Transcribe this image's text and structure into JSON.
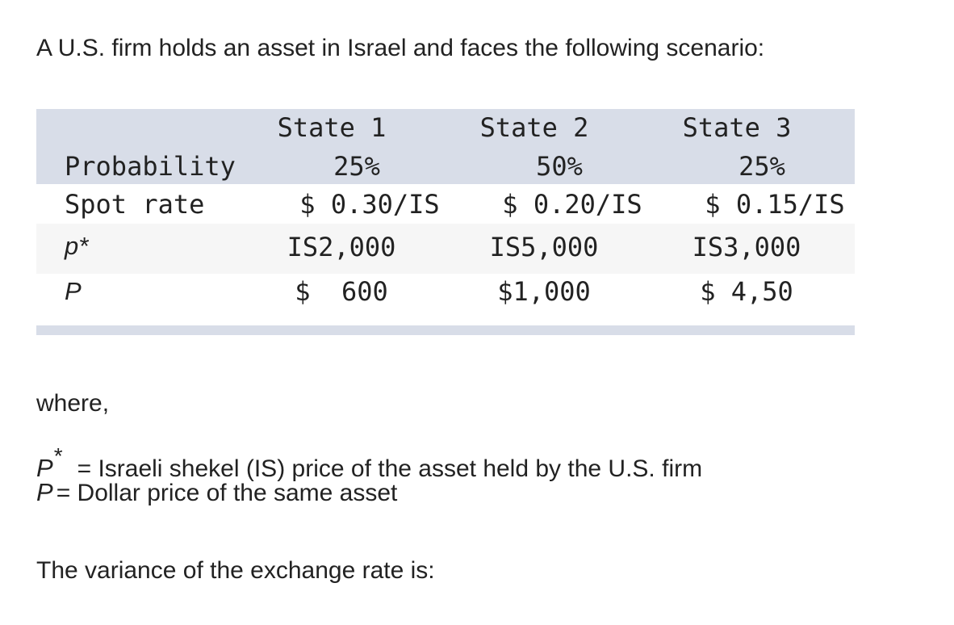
{
  "intro": "A U.S. firm holds an asset in Israel and faces the following scenario:",
  "table": {
    "states": [
      "State 1",
      "State 2",
      "State 3"
    ],
    "rows": [
      {
        "label": "Probability",
        "values": [
          "25%",
          "50%",
          "25%"
        ]
      },
      {
        "label": "Spot rate",
        "values": [
          "$ 0.30/IS",
          "$ 0.20/IS",
          "$ 0.15/IS"
        ]
      },
      {
        "label": "p*",
        "values": [
          "IS2,000",
          "IS5,000",
          "IS3,000"
        ]
      },
      {
        "label": "P",
        "values": [
          "$  600",
          "$1,000",
          "$ 4,50"
        ]
      }
    ]
  },
  "definitions": {
    "where": "where,",
    "pstar_symbol": "P",
    "pstar_star": "*",
    "pstar_text": "= Israeli shekel (IS) price of the asset held by the U.S. firm",
    "p_symbol": "P",
    "p_text": "= Dollar price of the same asset"
  },
  "question": "The variance of the exchange rate is:"
}
